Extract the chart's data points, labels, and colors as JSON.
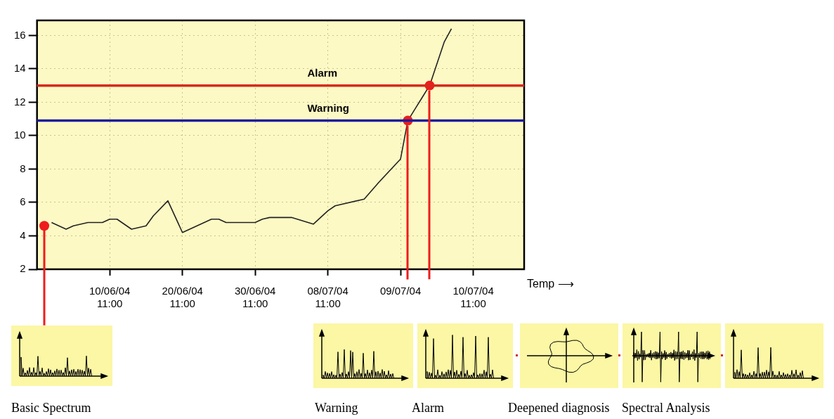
{
  "chart_data": {
    "type": "line",
    "xlabel": "Temp ⟶",
    "categories": [
      null,
      null,
      null,
      null,
      null,
      null,
      null,
      null,
      null,
      null,
      "10/06/04 11:00",
      null,
      null,
      null,
      null,
      null,
      null,
      null,
      null,
      null,
      "20/06/04 11:00",
      null,
      null,
      null,
      null,
      null,
      null,
      null,
      null,
      null,
      "30/06/04 11:00",
      null,
      null,
      null,
      null,
      null,
      null,
      null,
      null,
      null,
      "08/07/04 11:00",
      null,
      null,
      null,
      null,
      null,
      null,
      null,
      null,
      null,
      "09/07/04",
      null,
      null,
      null,
      null,
      null,
      null,
      null,
      null,
      null,
      "10/07/04 11:00",
      null,
      null,
      null,
      null,
      null,
      null,
      null
    ],
    "ylim": [
      2,
      16.9
    ],
    "yticks": [
      2,
      4,
      6,
      8,
      10,
      12,
      14,
      16
    ],
    "grid": true,
    "legend": false,
    "series": [
      {
        "color": "#222222",
        "marker": "none",
        "line_style": "solid",
        "values": [
          null,
          null,
          4.8,
          null,
          4.4,
          4.6,
          null,
          4.8,
          null,
          4.8,
          5.0,
          5.0,
          null,
          4.4,
          null,
          4.6,
          5.2,
          null,
          6.1,
          null,
          4.2,
          null,
          4.6,
          null,
          5.0,
          5.0,
          4.8,
          null,
          null,
          null,
          4.8,
          5.0,
          5.1,
          null,
          null,
          5.1,
          null,
          null,
          4.7,
          null,
          5.5,
          5.8,
          null,
          null,
          null,
          6.2,
          null,
          7.2,
          null,
          null,
          8.6,
          10.9,
          11.6,
          12.3,
          13.0,
          null,
          15.6,
          16.4,
          null,
          null,
          null,
          null,
          null,
          null,
          null,
          null,
          null,
          null
        ]
      },
      {
        "type": "scatter",
        "color": "#ee1c1c",
        "marker": "circle",
        "values": [
          null,
          4.6,
          null,
          null,
          null,
          null,
          null,
          null,
          null,
          null,
          null,
          null,
          null,
          null,
          null,
          null,
          null,
          null,
          null,
          null,
          null,
          null,
          null,
          null,
          null,
          null,
          null,
          null,
          null,
          null,
          null,
          null,
          null,
          null,
          null,
          null,
          null,
          null,
          null,
          null,
          null,
          null,
          null,
          null,
          null,
          null,
          null,
          null,
          null,
          null,
          null,
          10.9,
          null,
          null,
          13.0,
          null,
          null,
          null,
          null,
          null,
          null,
          null,
          null,
          null,
          null,
          null,
          null,
          null
        ]
      }
    ],
    "ref_lines": [
      {
        "axis": "y",
        "value": 13,
        "label": "Alarm",
        "color": "#d42a1e"
      },
      {
        "axis": "y",
        "value": 10.9,
        "label": "Warning",
        "color": "#1c1ca0"
      }
    ],
    "annotations": [
      "Basic Spectrum",
      "Warning",
      "Alarm",
      "Deepened diagnosis",
      "Spectral Analysis"
    ]
  }
}
